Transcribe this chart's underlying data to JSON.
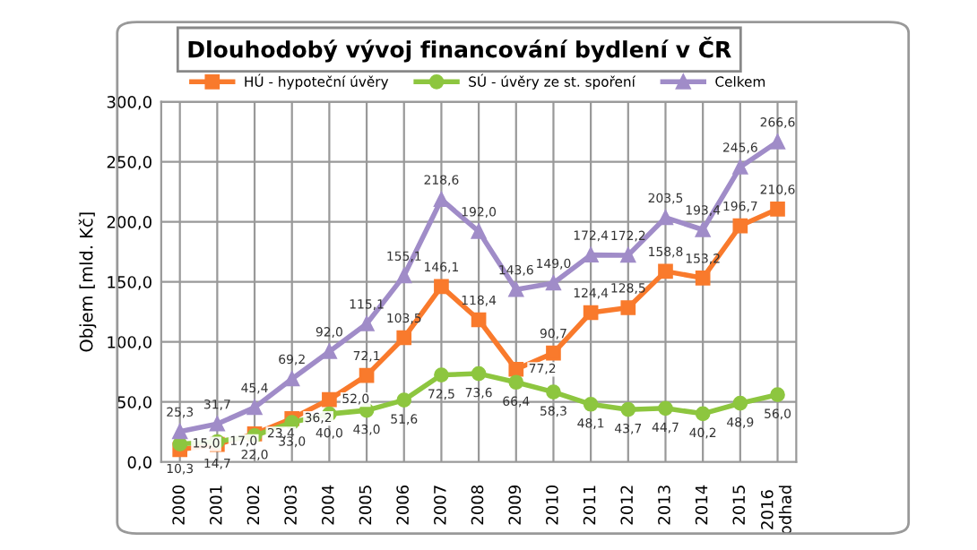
{
  "chart_data": {
    "type": "line",
    "title": "Dlouhodobý vývoj financování bydlení v ČR",
    "ylabel": "Objem [mld. Kč]",
    "categories": [
      "2000",
      "2001",
      "2002",
      "2003",
      "2004",
      "2005",
      "2006",
      "2007",
      "2008",
      "2009",
      "2010",
      "2011",
      "2012",
      "2013",
      "2014",
      "2015",
      "2016\nodhad"
    ],
    "series": [
      {
        "name": "HÚ - hypoteční úvěry",
        "color": "#f97a2c",
        "marker": "square",
        "values": [
          10.3,
          14.7,
          23.4,
          36.2,
          52.0,
          72.1,
          103.5,
          146.1,
          118.4,
          77.2,
          90.7,
          124.4,
          128.5,
          158.8,
          153.2,
          196.7,
          210.6
        ],
        "value_labels": [
          "10,3",
          "14,7",
          "23,4",
          "36,2",
          "52,0",
          "72,1",
          "103,5",
          "146,1",
          "118,4",
          "77,2",
          "90,7",
          "124,4",
          "128,5",
          "158,8",
          "153,2",
          "196,7",
          "210,6"
        ]
      },
      {
        "name": "SÚ - úvěry ze st. spoření",
        "color": "#8dc63f",
        "marker": "circle",
        "values": [
          15.0,
          17.0,
          22.0,
          33.0,
          40.0,
          43.0,
          51.6,
          72.5,
          73.6,
          66.4,
          58.3,
          48.1,
          43.7,
          44.7,
          40.2,
          48.9,
          56.0
        ],
        "value_labels": [
          "15,0",
          "17,0",
          "22,0",
          "33,0",
          "40,0",
          "43,0",
          "51,6",
          "72,5",
          "73,6",
          "66,4",
          "58,3",
          "48,1",
          "43,7",
          "44,7",
          "40,2",
          "48,9",
          "56,0"
        ]
      },
      {
        "name": "Celkem",
        "color": "#a08cc8",
        "marker": "triangle",
        "values": [
          25.3,
          31.7,
          45.4,
          69.2,
          92.0,
          115.1,
          155.1,
          218.6,
          192.0,
          143.6,
          149.0,
          172.4,
          172.2,
          203.5,
          193.4,
          245.6,
          266.6
        ],
        "value_labels": [
          "25,3",
          "31,7",
          "45,4",
          "69,2",
          "92,0",
          "115,1",
          "155,1",
          "218,6",
          "192,0",
          "143,6",
          "149,0",
          "172,4",
          "172,2",
          "203,5",
          "193,4",
          "245,6",
          "266,6"
        ]
      }
    ],
    "ylim": [
      0,
      300
    ],
    "yticks": [
      {
        "value": 0,
        "label": "0,0"
      },
      {
        "value": 50,
        "label": "50,0"
      },
      {
        "value": 100,
        "label": "100,0"
      },
      {
        "value": 150,
        "label": "150,0"
      },
      {
        "value": 200,
        "label": "200,0"
      },
      {
        "value": 250,
        "label": "250,0"
      },
      {
        "value": 300,
        "label": "300,0"
      }
    ],
    "grid": true,
    "legend": "top",
    "line_style": "solid"
  }
}
